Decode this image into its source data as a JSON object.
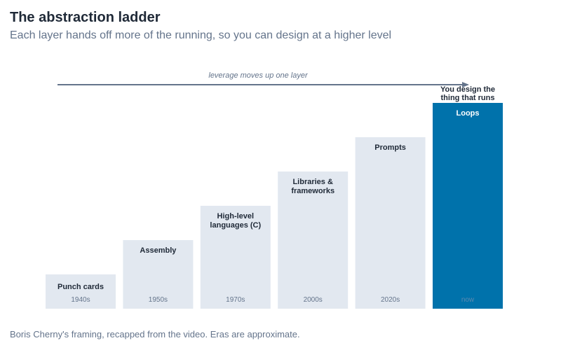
{
  "header": {
    "title": "The abstraction ladder",
    "subtitle": "Each layer hands off more of the running, so you can design at a higher level"
  },
  "footer": {
    "note": "Boris Cherny's framing, recapped from the video. Eras are approximate."
  },
  "annotations": {
    "arrow_label": "leverage moves up one layer",
    "callout_lines": [
      "You design the",
      "thing that runs"
    ]
  },
  "colors": {
    "bar": "#e2e8f0",
    "highlight": "#0072ab",
    "arrow": "#64748b"
  },
  "chart_data": {
    "type": "bar",
    "title": "The abstraction ladder",
    "subtitle": "Each layer hands off more of the running, so you can design at a higher level",
    "categories": [
      [
        "Punch cards"
      ],
      [
        "Assembly"
      ],
      [
        "High-level",
        "languages (C)"
      ],
      [
        "Libraries &",
        "frameworks"
      ],
      [
        "Prompts"
      ],
      [
        "Loops"
      ]
    ],
    "eras": [
      "1940s",
      "1950s",
      "1970s",
      "2000s",
      "2020s",
      "now"
    ],
    "values": [
      1,
      2,
      3,
      4,
      5,
      6
    ],
    "highlight_index": 5,
    "ylim": [
      0,
      6
    ],
    "grid": false,
    "legend": "none"
  }
}
